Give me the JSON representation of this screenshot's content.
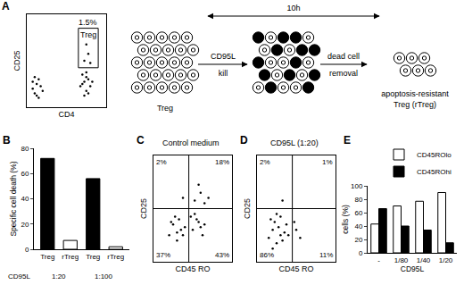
{
  "chart_data": [
    {
      "panel": "A",
      "type": "scatter",
      "x_label": "CD4",
      "y_label": "CD25",
      "x": [
        0.3,
        0.5,
        0.4,
        0.6,
        0.5,
        0.7,
        0.3,
        0.8,
        0.6,
        0.4,
        2.7,
        2.9,
        3.0,
        3.1,
        2.8,
        3.2,
        2.9,
        3.0,
        3.3,
        2.8,
        3.1,
        3.0,
        2.9,
        3.1,
        3.0,
        3.2
      ],
      "y": [
        0.8,
        1.0,
        0.6,
        1.2,
        0.5,
        0.9,
        1.1,
        0.7,
        0.4,
        1.3,
        0.9,
        1.1,
        0.7,
        1.2,
        1.4,
        0.9,
        0.5,
        1.5,
        1.1,
        1.0,
        0.6,
        1.3,
        2.0,
        2.3,
        2.7,
        1.9
      ],
      "xlim": [
        0,
        4
      ],
      "ylim": [
        0,
        4
      ],
      "tick_labels": false,
      "color": "#000000",
      "gate": {
        "x": [
          2.6,
          3.6
        ],
        "y": [
          1.7,
          3.4
        ],
        "label": "Treg",
        "value_label": "1.5%"
      }
    },
    {
      "panel": "B",
      "type": "bar",
      "y_label": "Specific cell death (%)",
      "categories": [
        "Treg",
        "rTreg",
        "Treg",
        "rTreg"
      ],
      "values": [
        72,
        7,
        56,
        2
      ],
      "colors": [
        "#000000",
        "#ffffff",
        "#000000",
        "#ffffff"
      ],
      "ylim": [
        0,
        80
      ],
      "yticks": [
        0,
        20,
        40,
        60,
        80
      ],
      "group_title": "CD95L",
      "group_labels": [
        "1:20",
        "1:100"
      ]
    },
    {
      "panel": "C",
      "type": "scatter",
      "title": "Control medium",
      "x_label": "CD45 RO",
      "y_label": "CD25",
      "x": [
        0.8,
        1.0,
        1.2,
        1.4,
        1.1,
        1.5,
        0.9,
        1.3,
        1.6,
        1.2,
        2.0,
        2.3,
        2.1,
        2.5,
        2.2,
        2.4,
        1.9,
        2.6,
        2.1,
        2.4,
        2.8,
        2.3,
        2.6,
        1.5
      ],
      "y": [
        1.0,
        1.4,
        0.8,
        1.2,
        1.7,
        1.0,
        1.5,
        1.6,
        1.3,
        1.1,
        1.2,
        1.5,
        1.8,
        1.0,
        1.6,
        1.3,
        1.7,
        1.4,
        2.3,
        2.6,
        2.4,
        2.9,
        2.2,
        2.4
      ],
      "xlim": [
        0,
        4
      ],
      "ylim": [
        0,
        4
      ],
      "tick_labels": false,
      "color": "#000000",
      "quadrants": {
        "x": 1.8,
        "y": 2.0,
        "labels": {
          "upper_left": "2%",
          "upper_right": "18%",
          "lower_left": "37%",
          "lower_right": "43%"
        }
      }
    },
    {
      "panel": "D",
      "type": "scatter",
      "title": "CD95L (1:20)",
      "x_label": "CD45 RO",
      "y_label": "CD25",
      "x": [
        0.6,
        0.8,
        1.0,
        1.2,
        0.9,
        1.1,
        1.4,
        0.7,
        1.3,
        1.5,
        1.0,
        1.2,
        0.8,
        1.6,
        2.0,
        2.2,
        1.9,
        1.3
      ],
      "y": [
        0.9,
        1.2,
        0.7,
        1.0,
        1.5,
        1.3,
        1.1,
        1.6,
        0.8,
        1.4,
        1.8,
        1.7,
        0.5,
        1.0,
        1.2,
        0.9,
        1.5,
        2.3
      ],
      "xlim": [
        0,
        4
      ],
      "ylim": [
        0,
        4
      ],
      "tick_labels": false,
      "color": "#000000",
      "quadrants": {
        "x": 1.8,
        "y": 2.0,
        "labels": {
          "upper_left": "2%",
          "upper_right": "1%",
          "lower_left": "86%",
          "lower_right": "11%"
        }
      }
    },
    {
      "panel": "E",
      "type": "bar",
      "x_label": "CD95L",
      "y_label": "cells (%)",
      "categories": [
        "-",
        "1/80",
        "1/40",
        "1/20"
      ],
      "series": [
        {
          "name": "CD45ROlo",
          "color": "#ffffff",
          "values": [
            43,
            70,
            77,
            90
          ]
        },
        {
          "name": "CD45ROhi",
          "color": "#000000",
          "values": [
            66,
            40,
            34,
            15
          ]
        }
      ],
      "ylim": [
        0,
        100
      ],
      "yticks": [
        0,
        20,
        40,
        60,
        80,
        100
      ],
      "legend": "top"
    }
  ],
  "diagram": {
    "duration": "10h",
    "start": {
      "label": "Treg"
    },
    "step1": {
      "above": "CD95L",
      "below": "kill"
    },
    "step2": "dead cell removal",
    "end": {
      "label": [
        "apoptosis-resistant",
        "Treg (rTreg)"
      ]
    }
  }
}
